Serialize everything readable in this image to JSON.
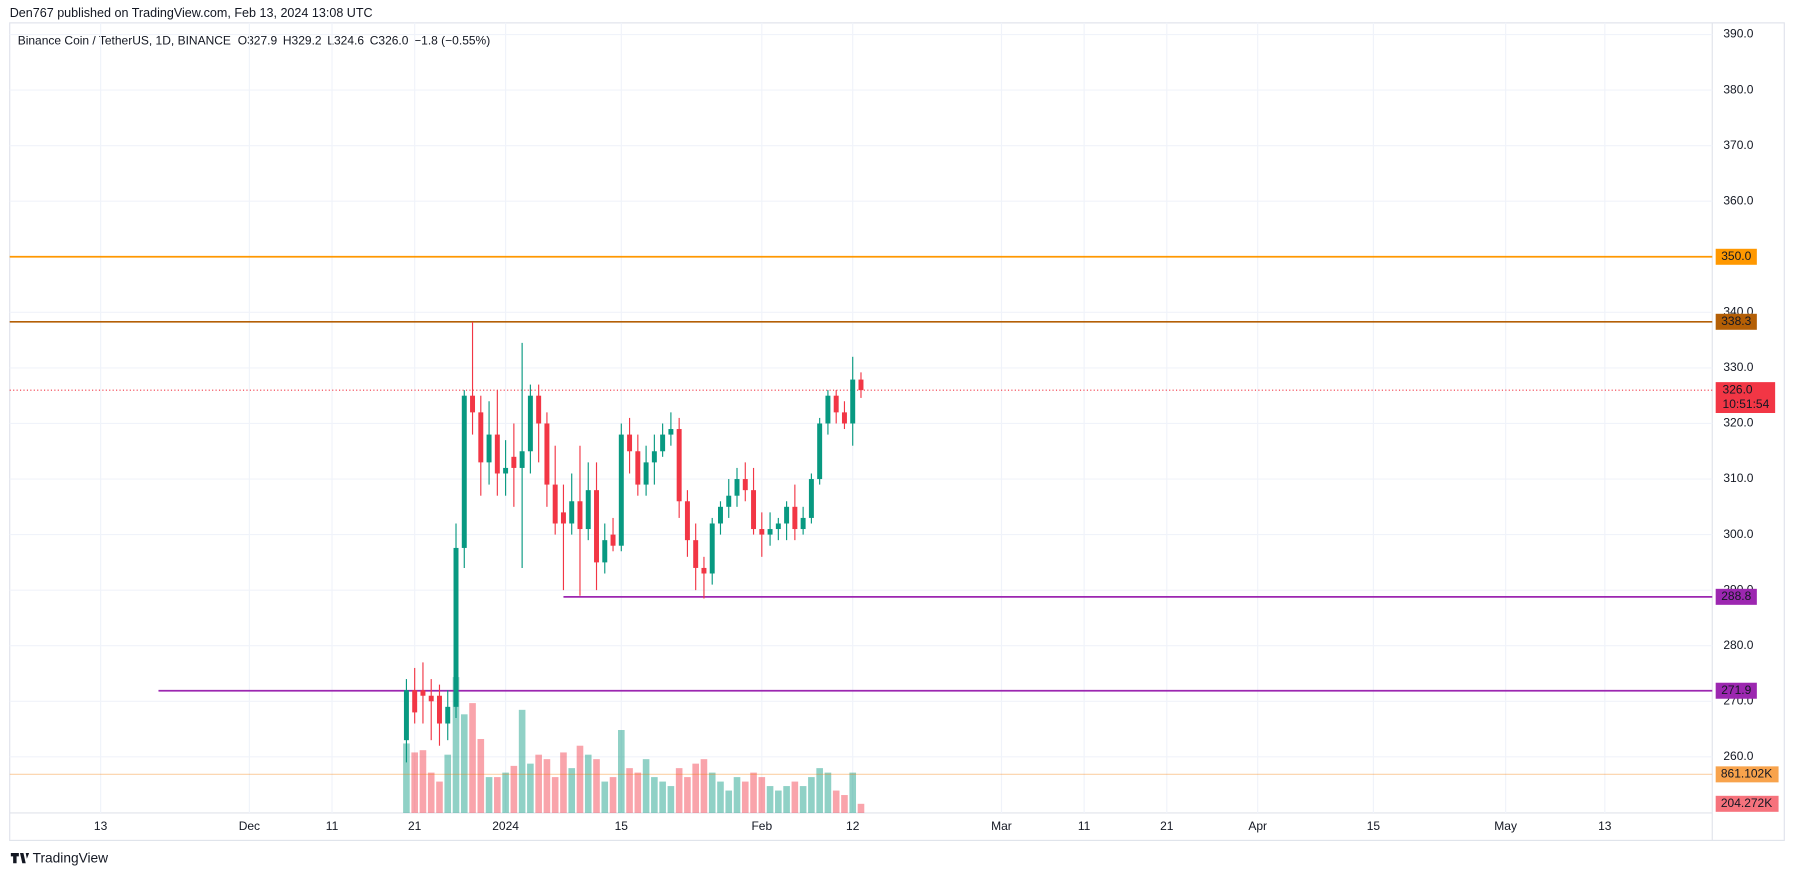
{
  "header": {
    "published": "Den767 published on TradingView.com, Feb 13, 2024 13:08 UTC",
    "brand": "TradingView"
  },
  "chart_data": {
    "type": "candlestick",
    "title": "Binance Coin / TetherUS, 1D, BINANCE",
    "legend_values": [
      {
        "key": "O",
        "value": "327.9"
      },
      {
        "key": "H",
        "value": "329.2"
      },
      {
        "key": "L",
        "value": "324.6"
      },
      {
        "key": "C",
        "value": "326.0"
      }
    ],
    "change": "−1.8 (−0.55%)",
    "up_color": "#089981",
    "down_color": "#f23645",
    "x": [
      "2023-12-20",
      "2023-12-21",
      "2023-12-22",
      "2023-12-23",
      "2023-12-24",
      "2023-12-25",
      "2023-12-26",
      "2023-12-27",
      "2023-12-28",
      "2023-12-29",
      "2023-12-30",
      "2023-12-31",
      "2024-01-01",
      "2024-01-02",
      "2024-01-03",
      "2024-01-04",
      "2024-01-05",
      "2024-01-06",
      "2024-01-07",
      "2024-01-08",
      "2024-01-09",
      "2024-01-10",
      "2024-01-11",
      "2024-01-12",
      "2024-01-13",
      "2024-01-14",
      "2024-01-15",
      "2024-01-16",
      "2024-01-17",
      "2024-01-18",
      "2024-01-19",
      "2024-01-20",
      "2024-01-21",
      "2024-01-22",
      "2024-01-23",
      "2024-01-24",
      "2024-01-25",
      "2024-01-26",
      "2024-01-27",
      "2024-01-28",
      "2024-01-29",
      "2024-01-30",
      "2024-01-31",
      "2024-02-01",
      "2024-02-02",
      "2024-02-03",
      "2024-02-04",
      "2024-02-05",
      "2024-02-06",
      "2024-02-07",
      "2024-02-08",
      "2024-02-09",
      "2024-02-10",
      "2024-02-11",
      "2024-02-12",
      "2024-02-13"
    ],
    "open": [
      263,
      272,
      272,
      271,
      271,
      266,
      269,
      297.6,
      325,
      322,
      313,
      318,
      311,
      314,
      312,
      315,
      325,
      320,
      309,
      304,
      302,
      306,
      301,
      308,
      295,
      300,
      298,
      318,
      315,
      309,
      313,
      315,
      318,
      319,
      306,
      299,
      294,
      293,
      302,
      305,
      307,
      310,
      308,
      301,
      300,
      301,
      302,
      305,
      301,
      303,
      310,
      320,
      325,
      322,
      320,
      327.9
    ],
    "high": [
      274,
      276,
      277,
      274,
      273,
      272,
      302,
      326,
      338.3,
      325,
      324,
      326,
      317,
      320,
      334.5,
      327,
      327,
      322,
      316,
      309,
      311,
      316,
      313,
      313,
      302,
      303,
      320,
      321,
      318,
      316,
      318,
      320,
      322,
      321,
      308,
      302,
      296,
      303,
      306,
      310,
      312,
      313,
      312,
      304,
      304,
      303,
      306,
      309,
      305,
      311,
      321,
      326,
      326,
      324,
      332,
      329.2
    ],
    "low": [
      259,
      266,
      266,
      263,
      262,
      263,
      267,
      294,
      318,
      307,
      309,
      307,
      307,
      305,
      294,
      311,
      313,
      305,
      300,
      290,
      300,
      289,
      299,
      290,
      293,
      297,
      297,
      311,
      307,
      307,
      309,
      314,
      316,
      303,
      296,
      290,
      288.5,
      291,
      300,
      303,
      305,
      306,
      300,
      296,
      298,
      299,
      299,
      299,
      300,
      302,
      309,
      318,
      320,
      319,
      316,
      324.6
    ],
    "close": [
      272,
      268,
      271,
      270,
      266,
      269,
      297.6,
      325,
      322,
      313,
      318,
      311,
      312,
      312,
      315,
      325,
      320,
      309,
      302,
      302,
      306,
      301,
      308,
      295,
      299,
      298,
      318,
      315,
      309,
      313,
      315,
      318,
      319,
      306,
      299,
      294,
      293,
      302,
      305,
      307,
      310,
      308,
      301,
      300,
      301,
      302,
      305,
      301,
      303,
      310,
      320,
      325,
      322,
      320,
      327.9,
      326.0
    ],
    "volume": {
      "values": [
        1550,
        1350,
        1400,
        900,
        700,
        1300,
        3030,
        2200,
        2450,
        1650,
        800,
        800,
        900,
        1050,
        2300,
        1100,
        1300,
        1200,
        800,
        1350,
        1000,
        1500,
        1300,
        1200,
        700,
        800,
        1850,
        1000,
        900,
        1200,
        800,
        700,
        600,
        1000,
        800,
        1100,
        1200,
        900,
        700,
        500,
        800,
        700,
        900,
        800,
        600,
        500,
        600,
        700,
        600,
        800,
        1000,
        900,
        500,
        400,
        900,
        204.272
      ],
      "last_label": "204.272K",
      "ma": {
        "value": 861.102,
        "label": "861.102K",
        "color": "#f57c00"
      },
      "ylim": [
        0,
        17620
      ]
    },
    "xlim": [
      "2023-11-02",
      "2024-05-26"
    ],
    "xticks": [
      {
        "value": "2023-11-13",
        "label": "13"
      },
      {
        "value": "2023-12-01",
        "label": "Dec"
      },
      {
        "value": "2023-12-11",
        "label": "11"
      },
      {
        "value": "2023-12-21",
        "label": "21"
      },
      {
        "value": "2024-01-01",
        "label": "2024"
      },
      {
        "value": "2024-01-15",
        "label": "15"
      },
      {
        "value": "2024-02-01",
        "label": "Feb"
      },
      {
        "value": "2024-02-12",
        "label": "12"
      },
      {
        "value": "2024-03-01",
        "label": "Mar"
      },
      {
        "value": "2024-03-11",
        "label": "11"
      },
      {
        "value": "2024-03-21",
        "label": "21"
      },
      {
        "value": "2024-04-01",
        "label": "Apr"
      },
      {
        "value": "2024-04-15",
        "label": "15"
      },
      {
        "value": "2024-05-01",
        "label": "May"
      },
      {
        "value": "2024-05-13",
        "label": "13"
      }
    ],
    "ylim": [
      249.9,
      392.1
    ],
    "yticks": [
      {
        "value": 260,
        "label": "260.0"
      },
      {
        "value": 270,
        "label": "270.0"
      },
      {
        "value": 280,
        "label": "280.0"
      },
      {
        "value": 290,
        "label": "290.0"
      },
      {
        "value": 300,
        "label": "300.0"
      },
      {
        "value": 310,
        "label": "310.0"
      },
      {
        "value": 320,
        "label": "320.0"
      },
      {
        "value": 330,
        "label": "330.0"
      },
      {
        "value": 340,
        "label": "340.0"
      },
      {
        "value": 350,
        "label": "350.0"
      },
      {
        "value": 360,
        "label": "360.0"
      },
      {
        "value": 370,
        "label": "370.0"
      },
      {
        "value": 380,
        "label": "380.0"
      },
      {
        "value": 390,
        "label": "390.0"
      }
    ],
    "grid": true,
    "levels": [
      {
        "value": 350.0,
        "label": "350.0",
        "color": "#ff9800"
      },
      {
        "value": 338.3,
        "label": "338.3",
        "color": "#b45f06"
      },
      {
        "value": 288.8,
        "label": "288.8",
        "color": "#9c27b0",
        "start": "2024-01-08"
      },
      {
        "value": 271.9,
        "label": "271.9",
        "color": "#9c27b0",
        "start": "2023-11-20"
      }
    ],
    "last_price": {
      "value": 326.0,
      "label": "326.0",
      "countdown": "10:51:54",
      "color": "#f23645"
    }
  }
}
